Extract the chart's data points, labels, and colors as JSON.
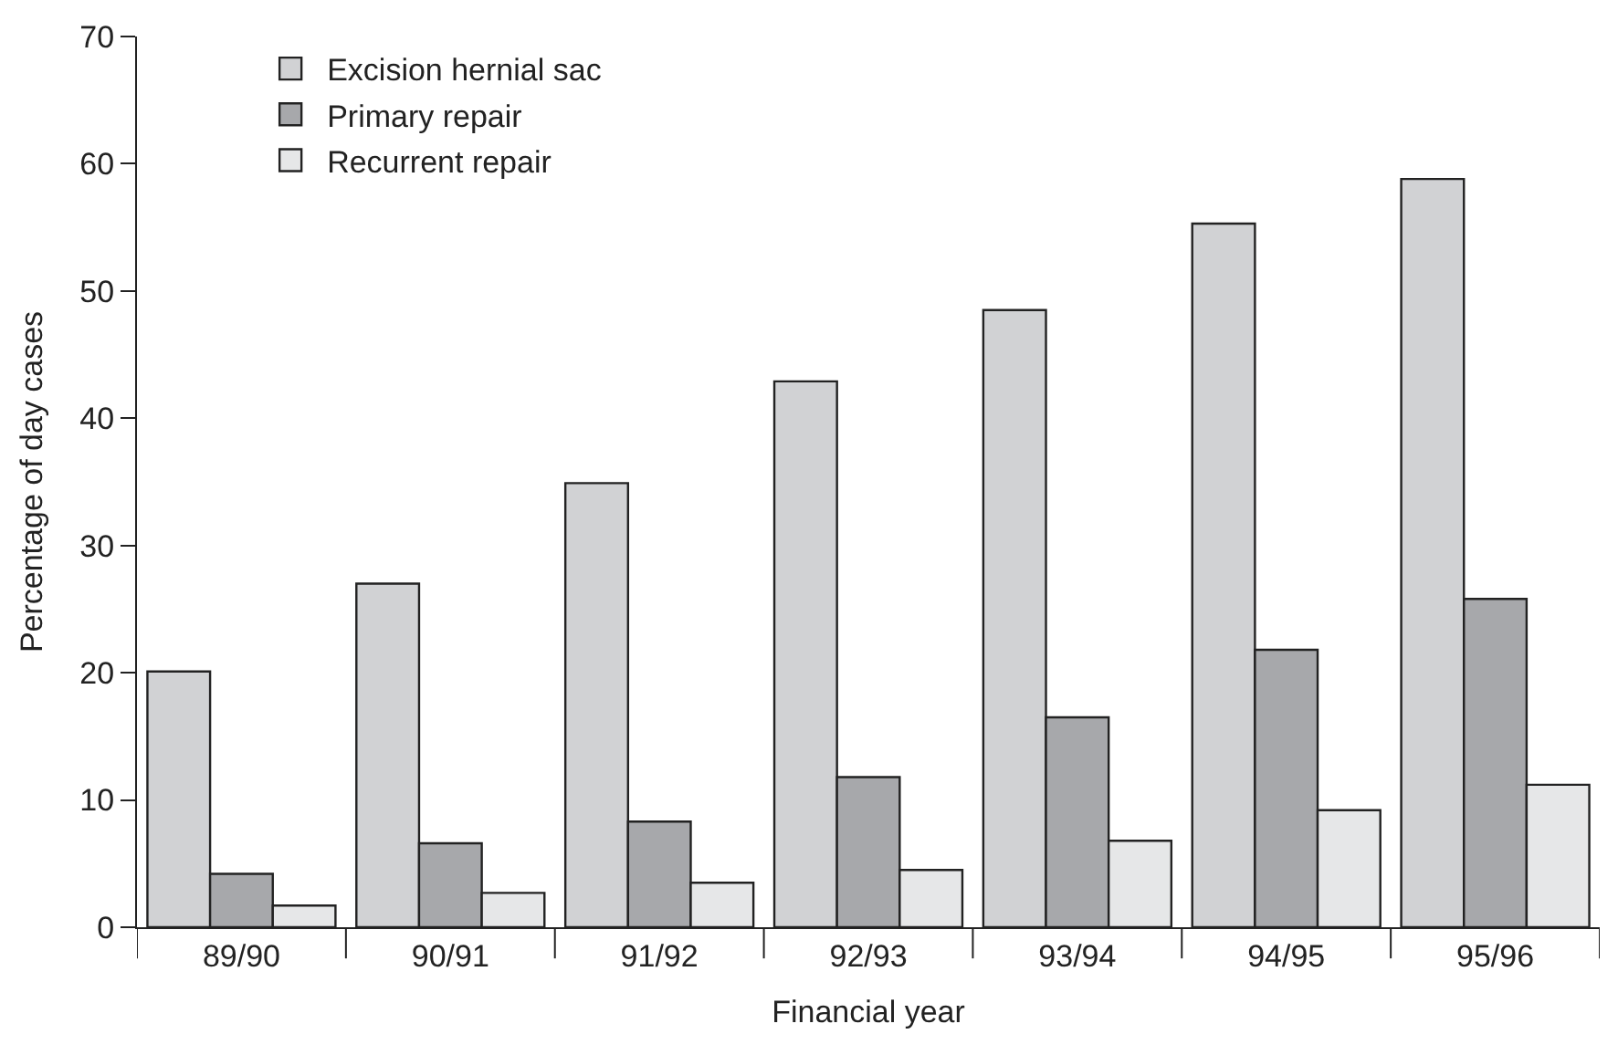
{
  "chart_data": {
    "type": "bar",
    "xlabel": "Financial year",
    "ylabel": "Percentage of day cases",
    "categories": [
      "89/90",
      "90/91",
      "91/92",
      "92/93",
      "93/94",
      "94/95",
      "95/96"
    ],
    "series": [
      {
        "name": "Excision hernial sac",
        "color": "#d1d2d4",
        "values": [
          20.1,
          27.0,
          34.9,
          42.9,
          48.5,
          55.3,
          58.8
        ]
      },
      {
        "name": "Primary repair",
        "color": "#a7a8ab",
        "values": [
          4.2,
          6.6,
          8.3,
          11.8,
          16.5,
          21.8,
          25.8
        ]
      },
      {
        "name": "Recurrent repair",
        "color": "#e6e7e8",
        "values": [
          1.7,
          2.7,
          3.5,
          4.5,
          6.8,
          9.2,
          11.2
        ]
      }
    ],
    "ylim": [
      0,
      70
    ],
    "yticks": [
      0,
      10,
      20,
      30,
      40,
      50,
      60,
      70
    ],
    "legend": "top left"
  }
}
